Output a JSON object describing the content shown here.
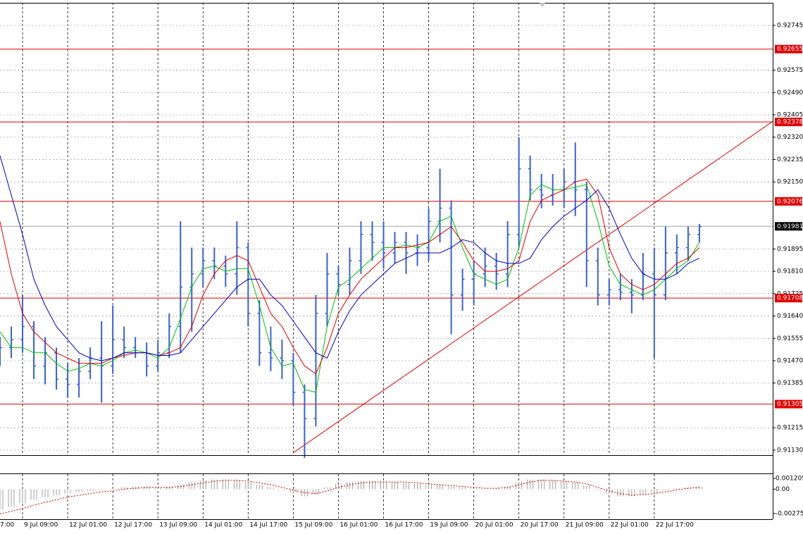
{
  "chart_data": [
    {
      "type": "ohlc",
      "x": [
        0,
        1,
        2,
        3,
        4,
        5,
        6,
        7,
        8,
        9,
        10,
        11,
        12,
        13,
        14,
        15,
        16,
        17,
        18,
        19,
        20,
        21,
        22,
        23,
        24,
        25,
        26,
        27,
        28,
        29,
        30,
        31,
        32,
        33,
        34,
        35,
        36,
        37,
        38,
        39,
        40,
        41,
        42,
        43,
        44,
        45,
        46,
        47,
        48,
        49,
        50,
        51,
        52,
        53,
        54,
        55,
        56,
        57,
        58,
        59,
        60,
        61,
        62
      ],
      "open": [
        0.915,
        0.9152,
        0.9155,
        0.916,
        0.9145,
        0.915,
        0.914,
        0.9138,
        0.9143,
        0.9148,
        0.9145,
        0.9155,
        0.9152,
        0.915,
        0.9145,
        0.915,
        0.916,
        0.9175,
        0.918,
        0.9185,
        0.9183,
        0.918,
        0.919,
        0.9165,
        0.915,
        0.9148,
        0.9147,
        0.9135,
        0.9125,
        0.9165,
        0.918,
        0.9176,
        0.9185,
        0.9195,
        0.9192,
        0.9188,
        0.9192,
        0.9188,
        0.919,
        0.92,
        0.9205,
        0.9172,
        0.9178,
        0.918,
        0.9183,
        0.918,
        0.9195,
        0.922,
        0.9212,
        0.921,
        0.9212,
        0.9215,
        0.9212,
        0.9185,
        0.9172,
        0.9174,
        0.9173,
        0.9172,
        0.918,
        0.9172,
        0.9188,
        0.919,
        0.9195
      ],
      "high": [
        0.9156,
        0.916,
        0.9172,
        0.9162,
        0.9156,
        0.9152,
        0.9146,
        0.9148,
        0.9152,
        0.9162,
        0.9168,
        0.916,
        0.9156,
        0.9154,
        0.9155,
        0.9165,
        0.92,
        0.919,
        0.919,
        0.919,
        0.9187,
        0.92,
        0.9192,
        0.917,
        0.916,
        0.9155,
        0.915,
        0.9138,
        0.9172,
        0.9188,
        0.9183,
        0.919,
        0.92,
        0.92,
        0.92,
        0.9196,
        0.9196,
        0.9195,
        0.9205,
        0.922,
        0.9208,
        0.9182,
        0.9185,
        0.919,
        0.9188,
        0.92,
        0.9232,
        0.9225,
        0.9218,
        0.9218,
        0.922,
        0.923,
        0.9215,
        0.919,
        0.9178,
        0.918,
        0.9178,
        0.9188,
        0.919,
        0.9198,
        0.9195,
        0.9198,
        0.9199
      ],
      "low": [
        0.9145,
        0.9148,
        0.915,
        0.914,
        0.9138,
        0.9136,
        0.9133,
        0.9133,
        0.914,
        0.9131,
        0.9142,
        0.9148,
        0.9148,
        0.9141,
        0.9143,
        0.9148,
        0.915,
        0.9158,
        0.9175,
        0.9178,
        0.9175,
        0.9172,
        0.916,
        0.9145,
        0.9143,
        0.914,
        0.913,
        0.911,
        0.9122,
        0.916,
        0.9172,
        0.9172,
        0.918,
        0.9185,
        0.9182,
        0.9184,
        0.918,
        0.9183,
        0.9185,
        0.9192,
        0.9157,
        0.9166,
        0.9168,
        0.9175,
        0.9174,
        0.9175,
        0.919,
        0.9208,
        0.9205,
        0.9206,
        0.9205,
        0.9202,
        0.9175,
        0.9168,
        0.9168,
        0.917,
        0.9165,
        0.917,
        0.9148,
        0.917,
        0.918,
        0.9185,
        0.9192
      ],
      "close": [
        0.9152,
        0.9155,
        0.916,
        0.9145,
        0.915,
        0.914,
        0.9138,
        0.9143,
        0.9148,
        0.9145,
        0.9155,
        0.9152,
        0.915,
        0.9145,
        0.915,
        0.916,
        0.9175,
        0.918,
        0.9185,
        0.9183,
        0.918,
        0.919,
        0.9165,
        0.915,
        0.9148,
        0.9147,
        0.9135,
        0.9125,
        0.9165,
        0.918,
        0.9176,
        0.9185,
        0.9195,
        0.9192,
        0.9188,
        0.9192,
        0.9188,
        0.919,
        0.92,
        0.9205,
        0.9172,
        0.9178,
        0.918,
        0.9183,
        0.918,
        0.9195,
        0.922,
        0.9212,
        0.921,
        0.9212,
        0.9215,
        0.9212,
        0.9185,
        0.9172,
        0.9174,
        0.9173,
        0.9172,
        0.918,
        0.9172,
        0.9188,
        0.919,
        0.9195,
        0.9198
      ],
      "bar_color": "#3a62c8",
      "series": [
        {
          "color": "#00c000",
          "values": [
            0.9158,
            0.9152,
            0.9152,
            0.915,
            0.915,
            0.9146,
            0.9143,
            0.9144,
            0.9146,
            0.9145,
            0.9147,
            0.915,
            0.9151,
            0.915,
            0.9148,
            0.9152,
            0.9163,
            0.9175,
            0.9182,
            0.9183,
            0.9181,
            0.9182,
            0.9182,
            0.9168,
            0.9152,
            0.9145,
            0.9146,
            0.9136,
            0.9135,
            0.916,
            0.9175,
            0.9178,
            0.9182,
            0.9186,
            0.919,
            0.919,
            0.9191,
            0.919,
            0.9192,
            0.92,
            0.9202,
            0.919,
            0.918,
            0.9178,
            0.9176,
            0.9178,
            0.919,
            0.921,
            0.9214,
            0.9212,
            0.9212,
            0.9213,
            0.9214,
            0.92,
            0.9183,
            0.9176,
            0.9174,
            0.9172,
            0.9174,
            0.9178,
            0.9182,
            0.9185,
            0.9192
          ]
        },
        {
          "color": "#e00000",
          "values": [
            0.92,
            0.918,
            0.9165,
            0.9158,
            0.9154,
            0.915,
            0.9148,
            0.9146,
            0.9146,
            0.9146,
            0.9148,
            0.9149,
            0.915,
            0.915,
            0.9149,
            0.915,
            0.9152,
            0.916,
            0.9172,
            0.918,
            0.9185,
            0.9187,
            0.9185,
            0.9175,
            0.9165,
            0.916,
            0.9152,
            0.9145,
            0.9142,
            0.9152,
            0.9165,
            0.9172,
            0.9178,
            0.9182,
            0.9186,
            0.919,
            0.919,
            0.9191,
            0.9192,
            0.9195,
            0.9198,
            0.9192,
            0.9185,
            0.9181,
            0.9181,
            0.9182,
            0.9185,
            0.92,
            0.9208,
            0.921,
            0.9212,
            0.9215,
            0.9216,
            0.921,
            0.919,
            0.918,
            0.9176,
            0.9174,
            0.9176,
            0.918,
            0.9184,
            0.9186,
            0.919
          ]
        },
        {
          "color": "#0000c8",
          "values": [
            0.9225,
            0.921,
            0.9195,
            0.9178,
            0.9168,
            0.916,
            0.9155,
            0.915,
            0.9148,
            0.9147,
            0.9148,
            0.915,
            0.915,
            0.915,
            0.9149,
            0.9149,
            0.915,
            0.9155,
            0.916,
            0.9165,
            0.917,
            0.9175,
            0.9178,
            0.9178,
            0.9172,
            0.9168,
            0.9162,
            0.9156,
            0.915,
            0.9148,
            0.9158,
            0.9166,
            0.9172,
            0.9176,
            0.918,
            0.9184,
            0.9186,
            0.9188,
            0.9188,
            0.9188,
            0.919,
            0.9193,
            0.9192,
            0.9188,
            0.9185,
            0.9184,
            0.9184,
            0.9186,
            0.9193,
            0.9198,
            0.9202,
            0.9205,
            0.9208,
            0.9212,
            0.9205,
            0.9195,
            0.9186,
            0.918,
            0.9178,
            0.9178,
            0.918,
            0.9184,
            0.9186
          ]
        }
      ],
      "xlim": [
        0,
        68.5
      ],
      "xticks": [
        {
          "value": -2,
          "label": "7:00"
        },
        {
          "value": 2,
          "label": "9 Jul 09:00"
        },
        {
          "value": 6,
          "label": "12 Jul 01:00"
        },
        {
          "value": 10,
          "label": "12 Jul 17:00"
        },
        {
          "value": 14,
          "label": "13 Jul 09:00"
        },
        {
          "value": 18,
          "label": "14 Jul 01:00"
        },
        {
          "value": 22,
          "label": "14 Jul 17:00"
        },
        {
          "value": 26,
          "label": "15 Jul 09:00"
        },
        {
          "value": 30,
          "label": "16 Jul 01:00"
        },
        {
          "value": 34,
          "label": "16 Jul 17:00"
        },
        {
          "value": 38,
          "label": "19 Jul 09:00"
        },
        {
          "value": 42,
          "label": "20 Jul 01:00"
        },
        {
          "value": 46,
          "label": "20 Jul 17:00"
        },
        {
          "value": 50,
          "label": "21 Jul 09:00"
        },
        {
          "value": 54,
          "label": "22 Jul 01:00"
        },
        {
          "value": 58,
          "label": "22 Jul 17:00"
        }
      ],
      "ylim": [
        0.91111,
        0.92831
      ],
      "yticks": [
        0.92745,
        0.92575,
        {
          "value": 0.9249,
          "label": "0.92490"
        },
        0.92405,
        {
          "value": 0.9232,
          "label": "0.92320"
        },
        0.92235,
        {
          "value": 0.9215,
          "label": "0.92150"
        },
        0.91895,
        {
          "value": 0.9181,
          "label": "0.91810"
        },
        0.91725,
        {
          "value": 0.9164,
          "label": "0.91640"
        },
        0.91555,
        {
          "value": 0.9147,
          "label": "0.91470"
        },
        0.91385,
        0.91215,
        {
          "value": 0.9113,
          "label": "0.91130"
        }
      ],
      "grid": true,
      "levels": {
        "color": "#e00000",
        "values": [
          0.92655,
          0.92378,
          0.92076,
          0.91708,
          0.91305
        ]
      },
      "current_price": 0.91981,
      "trendline": {
        "color": "#e00000",
        "x": [
          26,
          68.5
        ],
        "y": [
          0.9112,
          0.9238
        ]
      }
    },
    {
      "type": "oscillator",
      "values": [
        -0.0023,
        -0.002,
        -0.0016,
        -0.0012,
        -0.0009,
        -0.0007,
        -0.0005,
        -0.0003,
        -0.0002,
        -0.0001,
        0,
        0.0002,
        0.0003,
        0.0003,
        0.0002,
        0.0003,
        0.0005,
        0.0008,
        0.001,
        0.0011,
        0.0011,
        0.001,
        0.0008,
        0.0005,
        0.0002,
        -0.0001,
        -0.0004,
        -0.0008,
        -0.0006,
        0.0002,
        0.0006,
        0.0008,
        0.0009,
        0.0009,
        0.0009,
        0.0008,
        0.0007,
        0.0006,
        0.0005,
        0.0005,
        0.0003,
        0.0002,
        0.0001,
        0,
        0.0001,
        0.0003,
        0.0008,
        0.0011,
        0.0011,
        0.001,
        0.0009,
        0.0008,
        0.0004,
        -0.0001,
        -0.0005,
        -0.0008,
        -0.0008,
        -0.0006,
        -0.0004,
        -0.0001,
        0.0001,
        0.0002,
        0.0003
      ],
      "signal": [
        -0.0028,
        -0.0025,
        -0.0022,
        -0.0018,
        -0.0015,
        -0.0012,
        -0.0009,
        -0.0007,
        -0.0005,
        -0.0003,
        -0.0002,
        0,
        0.0001,
        0.0002,
        0.0002,
        0.0002,
        0.0003,
        0.0005,
        0.0007,
        0.0009,
        0.001,
        0.001,
        0.0009,
        0.0007,
        0.0005,
        0.0002,
        -0.0001,
        -0.0004,
        -0.0005,
        -0.0002,
        0.0002,
        0.0005,
        0.0007,
        0.0008,
        0.0008,
        0.0008,
        0.0008,
        0.0007,
        0.0006,
        0.0005,
        0.0004,
        0.0003,
        0.0002,
        0.0001,
        0.0001,
        0.0002,
        0.0005,
        0.0008,
        0.001,
        0.001,
        0.0009,
        0.0008,
        0.0006,
        0.0002,
        -0.0002,
        -0.0005,
        -0.0007,
        -0.0006,
        -0.0005,
        -0.0003,
        -0.0001,
        0.0001,
        0.0002
      ],
      "color": "#a0a0a0",
      "signal_color": "#e00000",
      "ylim": [
        -0.0034,
        0.0017
      ],
      "yticks": [
        0.001205,
        {
          "value": 0,
          "label": "0.00"
        },
        -0.00275
      ]
    }
  ]
}
